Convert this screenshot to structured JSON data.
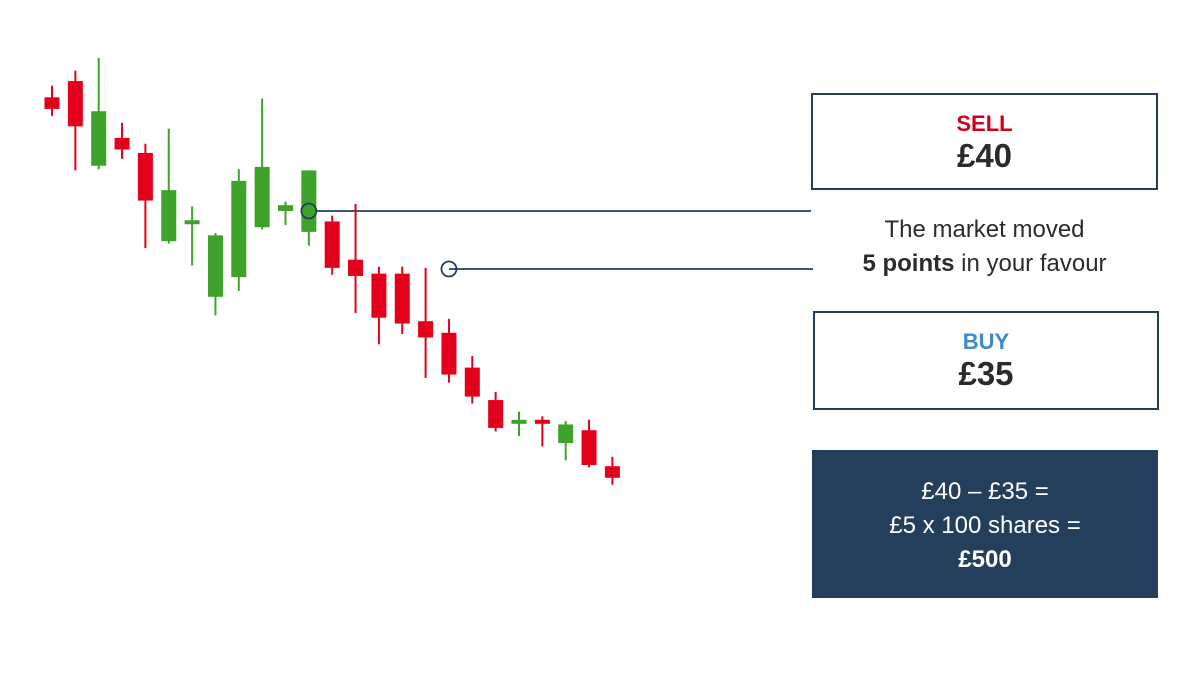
{
  "colors": {
    "up": "#3ea32b",
    "down": "#e2001a",
    "navy": "#243f5c",
    "sell": "#d0021b",
    "buy": "#3d8bc9",
    "text": "#2b2b2b"
  },
  "sell": {
    "label": "SELL",
    "price": "£40"
  },
  "buy": {
    "label": "BUY",
    "price": "£35"
  },
  "note": {
    "line1": "The market moved",
    "bold": "5 points",
    "rest": "in your favour"
  },
  "calc": {
    "line1": "£40 – £35 =",
    "line2": "£5 x 100 shares =",
    "result": "£500"
  },
  "chart_data": {
    "type": "candlestick",
    "candles": [
      {
        "dir": "down",
        "open": 49.8,
        "close": 48.8,
        "high": 50.8,
        "low": 48.2
      },
      {
        "dir": "down",
        "open": 51.2,
        "close": 47.3,
        "high": 52.1,
        "low": 43.5
      },
      {
        "dir": "up",
        "open": 43.9,
        "close": 48.6,
        "high": 53.2,
        "low": 43.6
      },
      {
        "dir": "down",
        "open": 46.3,
        "close": 45.3,
        "high": 47.6,
        "low": 44.5
      },
      {
        "dir": "down",
        "open": 45.0,
        "close": 40.9,
        "high": 45.8,
        "low": 36.8
      },
      {
        "dir": "up",
        "open": 37.4,
        "close": 41.8,
        "high": 47.1,
        "low": 37.2
      },
      {
        "dir": "up",
        "open": 38.9,
        "close": 39.2,
        "high": 40.4,
        "low": 35.3
      },
      {
        "dir": "up",
        "open": 32.6,
        "close": 37.9,
        "high": 38.1,
        "low": 31.0
      },
      {
        "dir": "up",
        "open": 34.3,
        "close": 42.6,
        "high": 43.6,
        "low": 33.1
      },
      {
        "dir": "up",
        "open": 38.6,
        "close": 43.8,
        "high": 49.7,
        "low": 38.4
      },
      {
        "dir": "up",
        "open": 40.0,
        "close": 40.5,
        "high": 40.8,
        "low": 38.8
      },
      {
        "dir": "up",
        "open": 38.2,
        "close": 43.5,
        "high": 43.5,
        "low": 37.0
      },
      {
        "dir": "down",
        "open": 39.1,
        "close": 35.1,
        "high": 39.6,
        "low": 34.5
      },
      {
        "dir": "down",
        "open": 35.8,
        "close": 34.4,
        "high": 40.6,
        "low": 31.2
      },
      {
        "dir": "down",
        "open": 34.6,
        "close": 30.8,
        "high": 35.2,
        "low": 28.5
      },
      {
        "dir": "down",
        "open": 34.6,
        "close": 30.3,
        "high": 35.2,
        "low": 29.4
      },
      {
        "dir": "down",
        "open": 30.5,
        "close": 29.1,
        "high": 35.1,
        "low": 25.6
      },
      {
        "dir": "down",
        "open": 29.5,
        "close": 25.9,
        "high": 30.7,
        "low": 25.2
      },
      {
        "dir": "down",
        "open": 26.5,
        "close": 24.0,
        "high": 27.5,
        "low": 23.4
      },
      {
        "dir": "down",
        "open": 23.7,
        "close": 21.3,
        "high": 24.4,
        "low": 21.0
      },
      {
        "dir": "up",
        "open": 21.7,
        "close": 22.0,
        "high": 22.7,
        "low": 20.6
      },
      {
        "dir": "down",
        "open": 22.0,
        "close": 21.7,
        "high": 22.3,
        "low": 19.7
      },
      {
        "dir": "up",
        "open": 20.0,
        "close": 21.6,
        "high": 21.9,
        "low": 18.5
      },
      {
        "dir": "down",
        "open": 21.1,
        "close": 18.1,
        "high": 22.0,
        "low": 17.9
      },
      {
        "dir": "down",
        "open": 18.0,
        "close": 17.0,
        "high": 18.8,
        "low": 16.4
      }
    ],
    "markers": [
      {
        "name": "sell",
        "candle": 11,
        "price": 40
      },
      {
        "name": "buy",
        "candle": 17,
        "price": 35
      }
    ]
  }
}
